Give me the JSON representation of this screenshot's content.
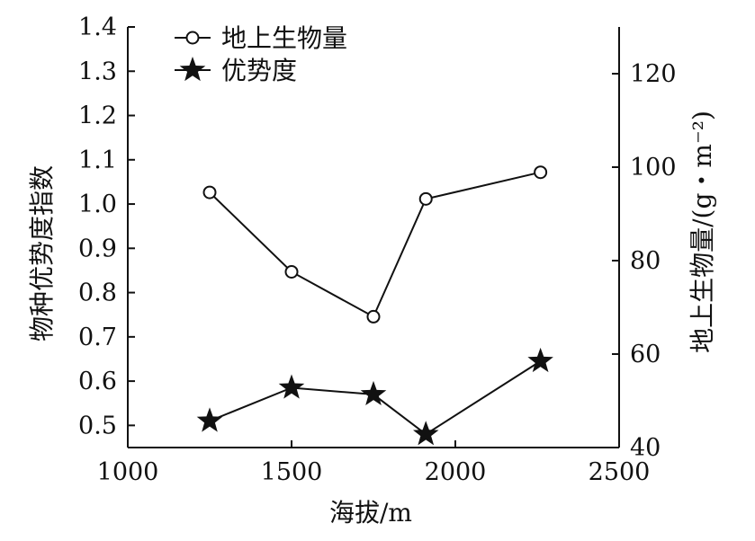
{
  "chart_data": {
    "type": "line",
    "x": [
      1250,
      1500,
      1750,
      1910,
      2260
    ],
    "xlim": [
      1000,
      2500
    ],
    "xticks": [
      1000,
      1500,
      2000,
      2500
    ],
    "xlabel": "海拔/m",
    "y_left": {
      "label": "物种优势度指数",
      "lim": [
        0.45,
        1.4
      ],
      "ticks": [
        0.5,
        0.6,
        0.7,
        0.8,
        0.9,
        1.0,
        1.1,
        1.2,
        1.3,
        1.4
      ],
      "tick_labels": [
        "0.5",
        "0.6",
        "0.7",
        "0.8",
        "0.9",
        "1.0",
        "1.1",
        "1.2",
        "1.3",
        "1.4"
      ]
    },
    "y_right": {
      "label": "地上生物量/(g・m⁻²)",
      "lim": [
        40,
        130
      ],
      "ticks": [
        40,
        60,
        80,
        100,
        120
      ],
      "tick_labels": [
        "40",
        "60",
        "80",
        "100",
        "120"
      ]
    },
    "series": [
      {
        "name": "地上生物量",
        "axis": "right",
        "marker": "open-circle",
        "values": [
          94.6,
          77.6,
          68.0,
          93.2,
          98.9
        ]
      },
      {
        "name": "优势度",
        "axis": "left",
        "marker": "filled-star",
        "values": [
          0.51,
          0.585,
          0.57,
          0.48,
          0.645
        ]
      }
    ],
    "legend_position": "top-left",
    "grid": false
  }
}
